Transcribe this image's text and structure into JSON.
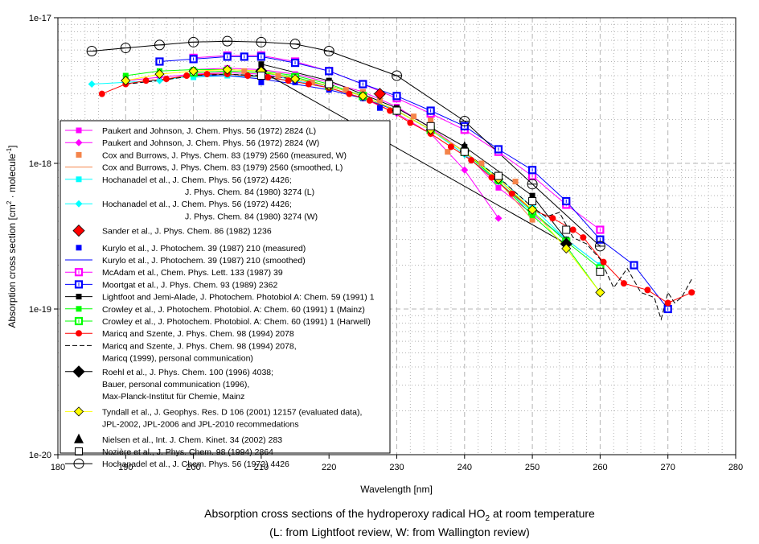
{
  "chart_data": {
    "type": "line",
    "title": "Absorption cross sections of the hydroperoxy radical HO2 at room temperature",
    "title_parts": {
      "before": "Absorption cross sections of the hydroperoxy radical HO",
      "subscript": "2",
      "after": " at room temperature"
    },
    "subtitle": "(L: from Lightfoot review, W: from Wallington review)",
    "xlabel": "Wavelength [nm]",
    "ylabel": "Absorption cross section [cm2 · molecule-1]",
    "ylabel_parts": {
      "a": "Absorption cross section [cm",
      "sup1": "2",
      "b": " · molecule",
      "sup2": "-1",
      "c": "]"
    },
    "xlim": [
      180,
      280
    ],
    "ylim": [
      1e-20,
      1e-17
    ],
    "yscale": "log",
    "x_ticks": [
      "180",
      "190",
      "200",
      "210",
      "220",
      "230",
      "240",
      "250",
      "260",
      "270",
      "280"
    ],
    "y_ticks": [
      {
        "value": 1e-17,
        "label": "1e-17"
      },
      {
        "value": 1e-18,
        "label": "1e-18"
      },
      {
        "value": 1e-19,
        "label": "1e-19"
      },
      {
        "value": 1e-20,
        "label": "1e-20"
      }
    ],
    "grid": true,
    "legend_position": "left, inside plot",
    "series": [
      {
        "name": "Paukert and Johnson, J. Chem. Phys. 56 (1972) 2824 (L)",
        "legend_lines": [
          "Paukert and Johnson, J. Chem. Phys. 56 (1972) 2824 (L)"
        ],
        "color": "#ff00ff",
        "line": "solid",
        "marker": "square-filled",
        "x": [
          200,
          205,
          210,
          215,
          220,
          225,
          230,
          235,
          240,
          245,
          250,
          260
        ],
        "y": [
          4.4e-18,
          4.5e-18,
          4.4e-18,
          4.1e-18,
          3.6e-18,
          3.1e-18,
          2.45e-18,
          1.75e-18,
          1.2e-18,
          6.8e-19,
          4.5e-19,
          2e-19
        ]
      },
      {
        "name": "Paukert and Johnson, J. Chem. Phys. 56 (1972) 2824 (W)",
        "legend_lines": [
          "Paukert and Johnson, J. Chem. Phys. 56 (1972) 2824 (W)"
        ],
        "color": "#ff00ff",
        "line": "solid",
        "marker": "diamond-filled",
        "x": [
          190,
          195,
          200,
          205,
          210,
          215,
          220,
          225,
          230,
          235,
          240,
          245
        ],
        "y": [
          3.7e-18,
          3.9e-18,
          4.1e-18,
          4.2e-18,
          4.1e-18,
          3.8e-18,
          3.3e-18,
          2.8e-18,
          2.2e-18,
          1.6e-18,
          9e-19,
          4.2e-19
        ]
      },
      {
        "name": "Cox and Burrows, J. Phys. Chem. 83 (1979) 2560 (measured, W)",
        "legend_lines": [
          "Cox and Burrows, J. Phys. Chem. 83 (1979) 2560 (measured, W)"
        ],
        "color": "#f4844a",
        "line": "none",
        "marker": "square-filled",
        "x": [
          205,
          207.5,
          210,
          212.5,
          215,
          217.5,
          220,
          222.5,
          225,
          227.5,
          230,
          232.5,
          235,
          237.5,
          240,
          242.5,
          245,
          247.5,
          250
        ],
        "y": [
          4.4e-18,
          4.3e-18,
          4.2e-18,
          4e-18,
          3.8e-18,
          3.6e-18,
          3.4e-18,
          3.2e-18,
          3.1e-18,
          2.7e-18,
          2.3e-18,
          2.1e-18,
          2e-18,
          1.2e-18,
          1.2e-18,
          1e-18,
          8e-19,
          7.5e-19,
          4.1e-19
        ]
      },
      {
        "name": "Cox and Burrows, J. Phys. Chem. 83 (1979) 2560 (smoothed, L)",
        "legend_lines": [
          "Cox and Burrows, J. Phys. Chem. 83 (1979) 2560 (smoothed, L)"
        ],
        "color": "#f4844a",
        "line": "solid",
        "marker": "none",
        "x": [
          200,
          205,
          210,
          215,
          220,
          225,
          230,
          235,
          240,
          245,
          250
        ],
        "y": [
          4.2e-18,
          4.3e-18,
          4.2e-18,
          3.9e-18,
          3.4e-18,
          2.9e-18,
          2.3e-18,
          1.7e-18,
          1.15e-18,
          7.5e-19,
          4.1e-19
        ]
      },
      {
        "name": "Hochanadel et al., J. Chem. Phys. 56 (1972) 4426; J. Phys. Chem. 84 (1980) 3274 (L)",
        "legend_lines": [
          "Hochanadel et al., J. Chem. Phys. 56 (1972) 4426;",
          "J. Phys. Chem. 84 (1980) 3274 (L)"
        ],
        "color": "#00ffff",
        "line": "solid",
        "marker": "square-filled",
        "x": [
          200,
          205,
          210,
          215,
          220,
          225,
          230,
          235,
          240,
          245,
          250,
          255,
          260
        ],
        "y": [
          3.9e-18,
          4e-18,
          3.9e-18,
          3.7e-18,
          3.3e-18,
          2.8e-18,
          2.3e-18,
          1.7e-18,
          1.2e-18,
          8e-19,
          5e-19,
          3e-19,
          2e-19
        ]
      },
      {
        "name": "Hochanadel et al., J. Chem. Phys. 56 (1972) 4426; J. Phys. Chem. 84 (1980) 3274 (W)",
        "legend_lines": [
          "Hochanadel et al., J. Chem. Phys. 56 (1972) 4426;",
          "J. Phys. Chem. 84 (1980) 3274 (W)"
        ],
        "color": "#00ffff",
        "line": "solid",
        "marker": "diamond-filled",
        "x": [
          185,
          190,
          195,
          200,
          205,
          210,
          215,
          220,
          225,
          230,
          235,
          240,
          245,
          250,
          255,
          260
        ],
        "y": [
          3.5e-18,
          3.6e-18,
          3.7e-18,
          4e-18,
          4.1e-18,
          4e-18,
          3.8e-18,
          3.4e-18,
          2.9e-18,
          2.3e-18,
          1.7e-18,
          1.15e-18,
          7.5e-19,
          4.6e-19,
          3e-19,
          2e-19
        ]
      },
      {
        "name": "Sander et al., J. Phys. Chem. 86 (1982) 1236",
        "legend_lines": [
          "Sander et al., J. Phys. Chem. 86 (1982) 1236"
        ],
        "color": "#ff0000",
        "line": "none",
        "marker": "diamond-large",
        "x": [
          227.5
        ],
        "y": [
          3e-18
        ]
      },
      {
        "name": "Kurylo et al., J. Photochem. 39 (1987) 210 (measured)",
        "legend_lines": [
          "Kurylo et al., J. Photochem. 39 (1987) 210 (measured)"
        ],
        "color": "#0000ff",
        "line": "none",
        "marker": "square-filled",
        "x": [
          210,
          215,
          220,
          225,
          227.5
        ],
        "y": [
          3.6e-18,
          3.6e-18,
          3.2e-18,
          2.8e-18,
          2.4e-18
        ]
      },
      {
        "name": "Kurylo et al., J. Photochem. 39 (1987) 210 (smoothed)",
        "legend_lines": [
          "Kurylo et al., J. Photochem. 39 (1987) 210 (smoothed)"
        ],
        "color": "#0000ff",
        "line": "solid",
        "marker": "none",
        "x": [
          200,
          205,
          210,
          215,
          220,
          225,
          230
        ],
        "y": [
          4e-18,
          4e-18,
          3.8e-18,
          3.5e-18,
          3.2e-18,
          2.8e-18,
          2.3e-18
        ]
      },
      {
        "name": "McAdam et al., Chem. Phys. Lett. 133 (1987) 39",
        "legend_lines": [
          "McAdam et al., Chem. Phys. Lett. 133 (1987) 39"
        ],
        "color": "#ff00ff",
        "line": "solid",
        "marker": "square-open-cross",
        "x": [
          200,
          205,
          210,
          215,
          220,
          225,
          230,
          235,
          240,
          245,
          250,
          255,
          260
        ],
        "y": [
          5.3e-18,
          5.5e-18,
          5.5e-18,
          5e-18,
          4.3e-18,
          3.5e-18,
          2.8e-18,
          2.2e-18,
          1.7e-18,
          1.2e-18,
          8.2e-19,
          5.2e-19,
          3.5e-19
        ]
      },
      {
        "name": "Moortgat et al., J. Phys. Chem. 93 (1989) 2362",
        "legend_lines": [
          "Moortgat et al., J. Phys. Chem. 93 (1989) 2362"
        ],
        "color": "#0000ff",
        "line": "solid",
        "marker": "square-open-cross",
        "x": [
          195,
          200,
          205,
          207.5,
          210,
          215,
          220,
          225,
          230,
          235,
          240,
          245,
          250,
          255,
          260,
          265,
          270
        ],
        "y": [
          5e-18,
          5.2e-18,
          5.4e-18,
          5.4e-18,
          5.4e-18,
          4.9e-18,
          4.3e-18,
          3.5e-18,
          2.9e-18,
          2.3e-18,
          1.8e-18,
          1.25e-18,
          9e-19,
          5.5e-19,
          3e-19,
          2e-19,
          1e-19
        ]
      },
      {
        "name": "Lightfoot and Jemi-Alade, J. Photochem. Photobiol A: Chem. 59 (1991) 1",
        "legend_lines": [
          "Lightfoot and Jemi-Alade, J. Photochem. Photobiol A: Chem. 59 (1991) 1"
        ],
        "color": "#000000",
        "line": "solid",
        "marker": "square-filled",
        "x": [
          210,
          220,
          230,
          240,
          250,
          255
        ],
        "y": [
          4.8e-18,
          3.7e-18,
          2.4e-18,
          1.3e-18,
          6e-19,
          3e-19
        ]
      },
      {
        "name": "Crowley et al., J. Photochem. Photobiol. A: Chem. 60 (1991) 1 (Mainz)",
        "legend_lines": [
          "Crowley et al., J. Photochem. Photobiol. A: Chem. 60 (1991) 1 (Mainz)"
        ],
        "color": "#00ff00",
        "line": "solid",
        "marker": "square-filled",
        "x": [
          190,
          195,
          200,
          205,
          210,
          215,
          220,
          225,
          230,
          235,
          240,
          245,
          250,
          255,
          260
        ],
        "y": [
          4e-18,
          4.3e-18,
          4.4e-18,
          4.4e-18,
          4.3e-18,
          4e-18,
          3.5e-18,
          2.9e-18,
          2.3e-18,
          1.7e-18,
          1.2e-18,
          7.5e-19,
          4.4e-19,
          2.7e-19,
          1.3e-19
        ]
      },
      {
        "name": "Crowley et al., J. Photochem. Photobiol. A: Chem. 60 (1991) 1 (Harwell)",
        "legend_lines": [
          "Crowley et al., J. Photochem. Photobiol. A: Chem. 60 (1991) 1 (Harwell)"
        ],
        "color": "#00ff00",
        "line": "solid",
        "marker": "square-open-cross",
        "x": [
          200,
          205,
          210,
          215,
          220,
          225,
          230,
          235,
          240,
          245,
          250,
          255,
          260
        ],
        "y": [
          4.2e-18,
          4.3e-18,
          4.2e-18,
          3.9e-18,
          3.4e-18,
          2.9e-18,
          2.3e-18,
          1.7e-18,
          1.2e-18,
          7.8e-19,
          4.7e-19,
          2.9e-19,
          1.9e-19
        ]
      },
      {
        "name": "Maricq and Szente, J. Phys. Chem. 98 (1994) 2078",
        "legend_lines": [
          "Maricq and Szente, J. Phys. Chem. 98 (1994) 2078"
        ],
        "color": "#ff0000",
        "line": "solid",
        "marker": "circle-filled",
        "x": [
          186.5,
          190,
          193,
          196,
          199,
          202,
          205,
          208,
          211,
          214,
          217,
          220,
          223,
          226,
          229,
          232,
          235,
          238,
          241,
          244,
          247,
          250,
          253,
          256,
          257.5,
          260.5,
          263.5,
          267,
          270,
          273.5
        ],
        "y": [
          3e-18,
          3.5e-18,
          3.7e-18,
          3.8e-18,
          4e-18,
          4.1e-18,
          4.1e-18,
          4e-18,
          3.9e-18,
          3.7e-18,
          3.5e-18,
          3.3e-18,
          3e-18,
          2.7e-18,
          2.3e-18,
          1.9e-18,
          1.6e-18,
          1.3e-18,
          1.05e-18,
          8e-19,
          6.2e-19,
          4.8e-19,
          4.2e-19,
          3.5e-19,
          3.1e-19,
          2.1e-19,
          1.5e-19,
          1.35e-19,
          1.1e-19,
          1.3e-19
        ]
      },
      {
        "name": "Maricq and Szente, J. Phys. Chem. 98 (1994) 2078, Maricq (1999), personal communication)",
        "legend_lines": [
          "Maricq and Szente, J. Phys. Chem. 98 (1994) 2078,",
          "Maricq (1999), personal communication)"
        ],
        "color": "#000000",
        "line": "dashed",
        "marker": "none",
        "x": [
          190,
          195,
          200,
          205,
          210,
          215,
          220,
          225,
          230,
          235,
          240,
          245,
          250,
          252,
          254,
          256,
          258,
          260,
          262,
          264,
          266,
          268,
          269,
          270,
          271,
          272,
          273.5
        ],
        "y": [
          3.5e-18,
          3.7e-18,
          4e-18,
          4.1e-18,
          4e-18,
          3.8e-18,
          3.4e-18,
          2.9e-18,
          2.3e-18,
          1.7e-18,
          1.2e-18,
          8e-19,
          5e-19,
          4.3e-19,
          4.6e-19,
          3.1e-19,
          2.8e-19,
          2.2e-19,
          1.4e-19,
          1.9e-19,
          1.3e-19,
          1.2e-19,
          8.5e-20,
          1.3e-19,
          1.1e-19,
          1.2e-19,
          1.6e-19
        ]
      },
      {
        "name": "Roehl et al., J. Phys. Chem. 100 (1996) 4038; Bauer, personal communication (1996), Max-Planck-Institut für Chemie, Mainz",
        "legend_lines": [
          "Roehl et al., J. Phys. Chem. 100 (1996) 4038;",
          "Bauer, personal communication (1996),",
          "Max-Planck-Institut für Chemie, Mainz"
        ],
        "color": "#000000",
        "line": "solid",
        "marker": "diamond-large",
        "x": [
          210,
          255
        ],
        "y": [
          4.3e-18,
          2.8e-19
        ]
      },
      {
        "name": "Tyndall et al., J. Geophys. Res. D 106 (2001) 12157 (evaluated data), JPL-2002, JPL-2006 and JPL-2010 recommedations",
        "legend_lines": [
          "Tyndall et al., J. Geophys. Res. D 106 (2001) 12157 (evaluated data),",
          "JPL-2002, JPL-2006 and JPL-2010 recommedations"
        ],
        "color": "#ffff00",
        "line": "solid",
        "marker": "diamond-yellow",
        "x": [
          190,
          195,
          200,
          205,
          210,
          215,
          220,
          225,
          230,
          235,
          240,
          245,
          250,
          255,
          260
        ],
        "y": [
          3.7e-18,
          4.1e-18,
          4.3e-18,
          4.4e-18,
          4.3e-18,
          3.8e-18,
          3.4e-18,
          2.9e-18,
          2.3e-18,
          1.7e-18,
          1.2e-18,
          7.8e-19,
          4.8e-19,
          2.6e-19,
          1.3e-19
        ]
      },
      {
        "name": "Nielsen et al., Int. J. Chem. Kinet. 34 (2002) 283",
        "legend_lines": [
          "Nielsen et al., Int. J. Chem. Kinet. 34 (2002) 283"
        ],
        "color": "#000000",
        "line": "none",
        "marker": "triangle-filled",
        "x": [
          240
        ],
        "y": [
          1.3e-18
        ]
      },
      {
        "name": "Nozière et al., J. Phys. Chem. 98 (1994) 2864",
        "legend_lines": [
          "Nozière et al., J. Phys. Chem. 98 (1994) 2864"
        ],
        "color": "#000000",
        "line": "none",
        "marker": "square-open",
        "x": [
          210,
          220,
          230,
          235,
          240,
          245,
          250,
          255,
          260
        ],
        "y": [
          4e-18,
          3.5e-18,
          2.3e-18,
          1.8e-18,
          1.2e-18,
          8.2e-19,
          5.5e-19,
          3.5e-19,
          1.8e-19
        ]
      },
      {
        "name": "Hochanadel et al., J. Chem. Phys. 56 (1972) 4426",
        "legend_lines": [
          "Hochanadel et al., J. Chem. Phys. 56 (1972) 4426"
        ],
        "color": "#000000",
        "line": "solid",
        "marker": "circle-open-cross",
        "x": [
          185,
          190,
          195,
          200,
          205,
          210,
          215,
          220,
          230,
          240,
          250,
          260
        ],
        "y": [
          5.9e-18,
          6.2e-18,
          6.5e-18,
          6.8e-18,
          6.9e-18,
          6.8e-18,
          6.6e-18,
          5.9e-18,
          4e-18,
          1.95e-18,
          7.2e-19,
          2.7e-19
        ]
      }
    ]
  }
}
